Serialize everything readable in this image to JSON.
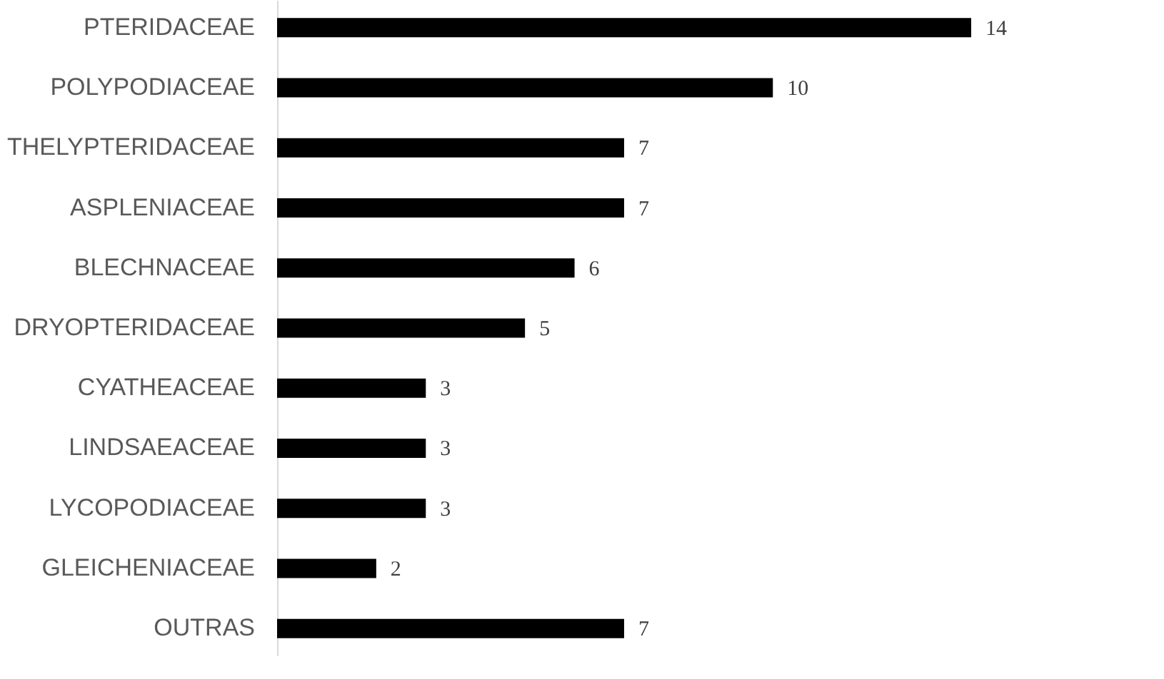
{
  "chart_data": {
    "type": "bar",
    "orientation": "horizontal",
    "data_labels": true,
    "color": "#000000",
    "categories": [
      "PTERIDACEAE",
      "POLYPODIACEAE",
      "THELYPTERIDACEAE",
      "ASPLENIACEAE",
      "BLECHNACEAE",
      "DRYOPTERIDACEAE",
      "CYATHEACEAE",
      "LINDSAEACEAE",
      "LYCOPODIACEAE",
      "GLEICHENIACEAE",
      "OUTRAS"
    ],
    "values": [
      14,
      10,
      7,
      7,
      6,
      5,
      3,
      3,
      3,
      2,
      7
    ]
  }
}
